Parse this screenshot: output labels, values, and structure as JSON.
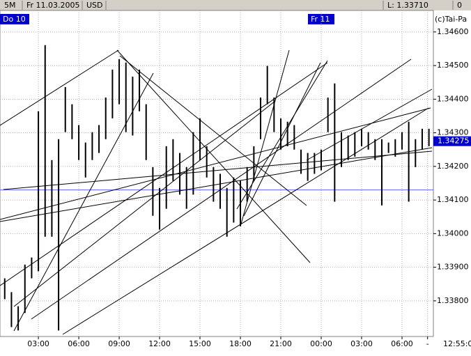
{
  "chart_data": {
    "type": "range-bar",
    "toolbar": [
      "5M",
      "Fr 11.03.2005",
      "USD",
      "L: 1.33710",
      "0"
    ],
    "day_labels": [
      "Do 10",
      "Fr 11"
    ],
    "copyright": "(c)Tai-Pa",
    "time_label": "12:55:0",
    "last_price": 1.34275,
    "reference_line": 1.3413,
    "color": "#000000",
    "grid": true,
    "xlim": [
      0.15,
      32.33
    ],
    "ylim": [
      1.33694,
      1.34664
    ],
    "xticks": [
      {
        "value": 3,
        "label": "03:00"
      },
      {
        "value": 6,
        "label": "06:00"
      },
      {
        "value": 9,
        "label": "09:00"
      },
      {
        "value": 12,
        "label": "12:00"
      },
      {
        "value": 15,
        "label": "15:00"
      },
      {
        "value": 18,
        "label": "18:00"
      },
      {
        "value": 21,
        "label": "21:00"
      },
      {
        "value": 24,
        "label": "00:00"
      },
      {
        "value": 27,
        "label": "03:00"
      },
      {
        "value": 30,
        "label": "06:00"
      },
      {
        "value": 31.9,
        "label": "-"
      }
    ],
    "yticks": [
      {
        "value": 1.346,
        "label": "1.34600"
      },
      {
        "value": 1.345,
        "label": "1.34500"
      },
      {
        "value": 1.344,
        "label": "1.34400"
      },
      {
        "value": 1.343,
        "label": "1.34300"
      },
      {
        "value": 1.342,
        "label": "1.34200"
      },
      {
        "value": 1.341,
        "label": "1.34100"
      },
      {
        "value": 1.34,
        "label": "1.34000"
      },
      {
        "value": 1.339,
        "label": "1.33900"
      },
      {
        "value": 1.338,
        "label": "1.33800"
      }
    ],
    "x": [
      0.5,
      1,
      1.5,
      2,
      2.5,
      3,
      3.5,
      4,
      4.5,
      5,
      5.5,
      6,
      6.5,
      7,
      7.5,
      8,
      8.5,
      9,
      9.5,
      10,
      10.5,
      11,
      11.5,
      12,
      12.5,
      13,
      13.5,
      14,
      14.5,
      15,
      15.5,
      16,
      16.5,
      17,
      17.5,
      18,
      18.5,
      19,
      19.5,
      20,
      20.5,
      21,
      21.5,
      22,
      22.5,
      23,
      23.5,
      24,
      24.5,
      25,
      25.5,
      26,
      26.5,
      27,
      27.5,
      28,
      28.5,
      29,
      29.5,
      30,
      30.5,
      31,
      31.5,
      32
    ],
    "high": [
      1.33867,
      1.33826,
      1.33784,
      1.33908,
      1.33929,
      1.34364,
      1.34561,
      1.34219,
      1.34281,
      1.34436,
      1.34385,
      1.34323,
      1.34271,
      1.34302,
      1.34323,
      1.34405,
      1.34488,
      1.34519,
      1.34509,
      1.34467,
      1.34488,
      1.34385,
      1.34198,
      1.34136,
      1.3426,
      1.34281,
      1.3424,
      1.34198,
      1.34302,
      1.34343,
      1.3426,
      1.34198,
      1.34178,
      1.34136,
      1.34167,
      1.34157,
      1.34198,
      1.3426,
      1.34405,
      1.34499,
      1.34405,
      1.34343,
      1.34333,
      1.34323,
      1.3425,
      1.3424,
      1.3424,
      1.3425,
      1.34405,
      1.34447,
      1.34302,
      1.34292,
      1.34302,
      1.34312,
      1.34302,
      1.34281,
      1.34281,
      1.34271,
      1.34281,
      1.34302,
      1.34333,
      1.34281,
      1.34312,
      1.34312
    ],
    "low": [
      1.33805,
      1.33722,
      1.33712,
      1.33764,
      1.33867,
      1.33888,
      1.33991,
      1.33991,
      1.33712,
      1.34302,
      1.34281,
      1.34219,
      1.34167,
      1.34219,
      1.3424,
      1.34281,
      1.34343,
      1.34385,
      1.34302,
      1.34292,
      1.34364,
      1.34219,
      1.34053,
      1.34012,
      1.34074,
      1.34157,
      1.34116,
      1.34074,
      1.34116,
      1.34219,
      1.34167,
      1.34095,
      1.34074,
      1.33991,
      1.34033,
      1.34022,
      1.34095,
      1.34157,
      1.34281,
      1.34385,
      1.34302,
      1.3425,
      1.3426,
      1.3425,
      1.34178,
      1.34157,
      1.34178,
      1.34188,
      1.34302,
      1.34095,
      1.34198,
      1.34219,
      1.34229,
      1.3426,
      1.3425,
      1.34219,
      1.34084,
      1.3424,
      1.34229,
      1.3425,
      1.34095,
      1.34198,
      1.3425,
      1.3426
    ]
  }
}
